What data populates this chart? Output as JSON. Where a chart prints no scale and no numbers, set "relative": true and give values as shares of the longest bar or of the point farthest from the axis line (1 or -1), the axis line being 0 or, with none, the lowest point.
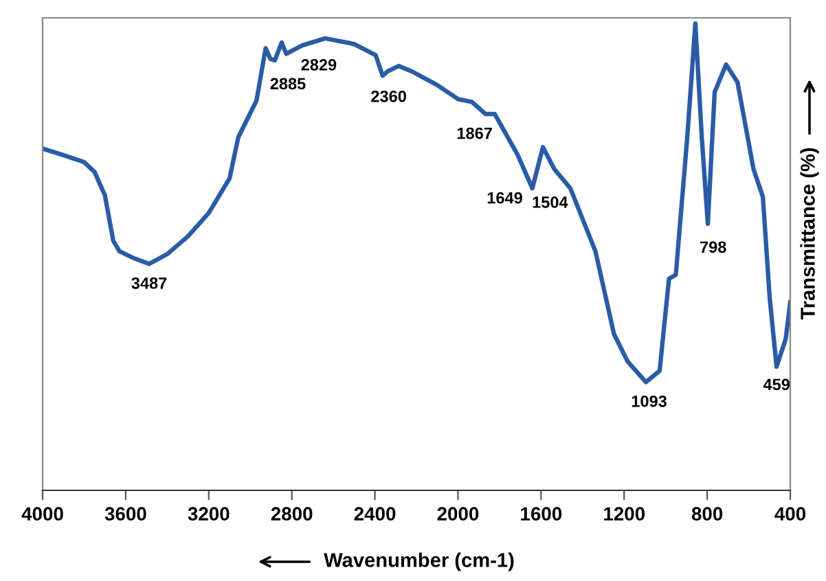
{
  "chart_data": {
    "type": "line",
    "relative": true,
    "xlabel": "Wavenumber (cm-1)",
    "ylabel": "Transmittance (%)",
    "xlim": [
      4000,
      400
    ],
    "xticks": [
      4000,
      3600,
      3200,
      2800,
      2400,
      2000,
      1600,
      1200,
      800,
      400
    ],
    "grid": false,
    "legend": false,
    "marker": "none",
    "line_style": "solid",
    "x": [
      4000,
      3900,
      3800,
      3750,
      3700,
      3660,
      3630,
      3560,
      3487,
      3400,
      3300,
      3200,
      3100,
      3058,
      2970,
      2926,
      2903,
      2882,
      2849,
      2827,
      2750,
      2639,
      2500,
      2396,
      2363,
      2340,
      2286,
      2220,
      2100,
      1999,
      1933,
      1867,
      1823,
      1712,
      1642,
      1591,
      1536,
      1459,
      1338,
      1249,
      1183,
      1095,
      1029,
      984,
      951,
      896,
      857,
      826,
      797,
      764,
      709,
      654,
      577,
      532,
      499,
      466,
      422,
      400
    ],
    "series": [
      {
        "color": "#2a5ca6",
        "values": [
          0.732,
          0.718,
          0.703,
          0.682,
          0.632,
          0.535,
          0.512,
          0.497,
          0.485,
          0.506,
          0.544,
          0.594,
          0.668,
          0.756,
          0.835,
          0.947,
          0.924,
          0.921,
          0.959,
          0.935,
          0.953,
          0.968,
          0.956,
          0.932,
          0.888,
          0.897,
          0.909,
          0.897,
          0.868,
          0.838,
          0.832,
          0.806,
          0.806,
          0.718,
          0.647,
          0.735,
          0.688,
          0.647,
          0.512,
          0.335,
          0.276,
          0.232,
          0.256,
          0.453,
          0.462,
          0.756,
          1.0,
          0.756,
          0.571,
          0.853,
          0.912,
          0.874,
          0.688,
          0.629,
          0.412,
          0.265,
          0.324,
          0.403
        ]
      }
    ],
    "annotations": [
      {
        "text": "3487",
        "x": 3487,
        "y": 0.485
      },
      {
        "text": "2885",
        "x": 2885,
        "y": 0.921
      },
      {
        "text": "2829",
        "x": 2829,
        "y": 0.935
      },
      {
        "text": "2360",
        "x": 2360,
        "y": 0.888
      },
      {
        "text": "1867",
        "x": 1867,
        "y": 0.806
      },
      {
        "text": "1649",
        "x": 1649,
        "y": 0.647
      },
      {
        "text": "1504",
        "x": 1504,
        "y": 0.673
      },
      {
        "text": "1093",
        "x": 1093,
        "y": 0.232
      },
      {
        "text": "798",
        "x": 798,
        "y": 0.571
      },
      {
        "text": "459",
        "x": 459,
        "y": 0.265
      }
    ]
  }
}
